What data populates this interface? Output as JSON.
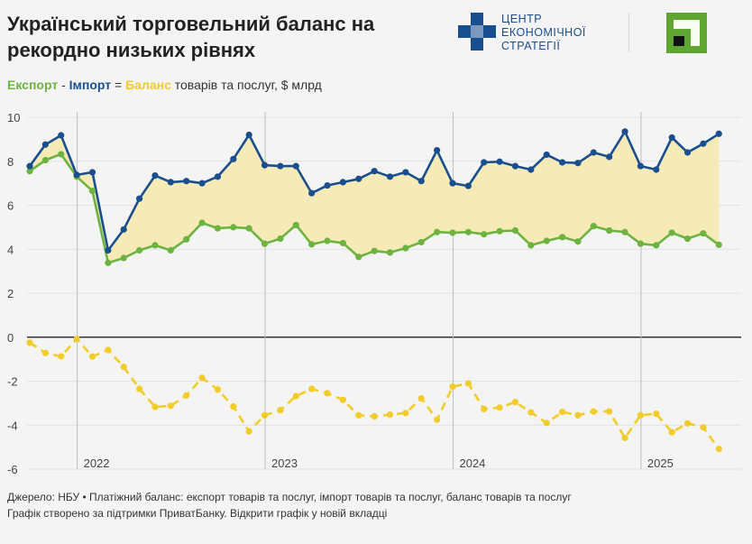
{
  "header": {
    "title": "Український торговельний баланс на рекордно низьких рівнях",
    "subtitle": {
      "export": "Експорт",
      "sep1": " - ",
      "import": "Імпорт",
      "sep2": " = ",
      "balance": "Баланс",
      "rest": " товарів та послуг, $ млрд"
    }
  },
  "logos": {
    "ces_lines": [
      "ЦЕНТР",
      "ЕКОНОМІЧНОЇ",
      "СТРАТЕГІЇ"
    ],
    "ces_icon": "ces-logo-icon",
    "bank_icon": "privatbank-logo-icon"
  },
  "colors": {
    "export": "#6db33f",
    "import": "#1a4f8f",
    "balance": "#f2cc2a",
    "fill": "#f5e9b3"
  },
  "chart_data": {
    "type": "line",
    "x_start": "2021-10",
    "x_labels": [
      "2022",
      "2023",
      "2024",
      "2025"
    ],
    "ylim": [
      -6,
      10
    ],
    "yticks": [
      10,
      8,
      6,
      4,
      2,
      0,
      -2,
      -4,
      -6
    ],
    "grid": true,
    "series": [
      {
        "name": "Експорт",
        "values": [
          7.55,
          8.05,
          8.32,
          7.3,
          6.65,
          3.38,
          3.6,
          3.95,
          4.18,
          3.95,
          4.45,
          5.2,
          4.95,
          5.0,
          4.95,
          4.25,
          4.48,
          5.1,
          4.22,
          4.38,
          4.28,
          3.65,
          3.92,
          3.85,
          4.05,
          4.32,
          4.78,
          4.75,
          4.78,
          4.68,
          4.82,
          4.85,
          4.18,
          4.38,
          4.55,
          4.35,
          5.05,
          4.85,
          4.78,
          4.25,
          4.18,
          4.75,
          4.48,
          4.72,
          4.2
        ]
      },
      {
        "name": "Імпорт",
        "values": [
          7.78,
          8.76,
          9.18,
          7.38,
          7.5,
          3.95,
          4.9,
          6.3,
          7.35,
          7.05,
          7.1,
          7.0,
          7.3,
          8.1,
          9.2,
          7.82,
          7.78,
          7.78,
          6.55,
          6.9,
          7.05,
          7.2,
          7.55,
          7.3,
          7.5,
          7.1,
          8.5,
          7.0,
          6.88,
          7.95,
          7.98,
          7.78,
          7.62,
          8.3,
          7.95,
          7.92,
          8.4,
          8.2,
          9.35,
          7.78,
          7.62,
          9.08,
          8.4,
          8.8,
          9.25
        ]
      },
      {
        "name": "Баланс",
        "values": [
          -0.25,
          -0.72,
          -0.87,
          -0.08,
          -0.88,
          -0.58,
          -1.35,
          -2.35,
          -3.17,
          -3.12,
          -2.65,
          -1.85,
          -2.38,
          -3.15,
          -4.28,
          -3.55,
          -3.32,
          -2.68,
          -2.35,
          -2.55,
          -2.85,
          -3.55,
          -3.6,
          -3.52,
          -3.45,
          -2.78,
          -3.75,
          -2.25,
          -2.1,
          -3.27,
          -3.2,
          -2.95,
          -3.42,
          -3.9,
          -3.4,
          -3.55,
          -3.38,
          -3.38,
          -4.58,
          -3.55,
          -3.48,
          -4.32,
          -3.92,
          -4.1,
          -5.08
        ]
      }
    ]
  },
  "footer": {
    "line1": "Джерело: НБУ • Платіжний баланс: експорт товарів та послуг, імпорт товарів та послуг, баланс товарів та послуг",
    "line2": "Графік створено за підтримки ПриватБанку. Відкрити графік у новій вкладці"
  }
}
